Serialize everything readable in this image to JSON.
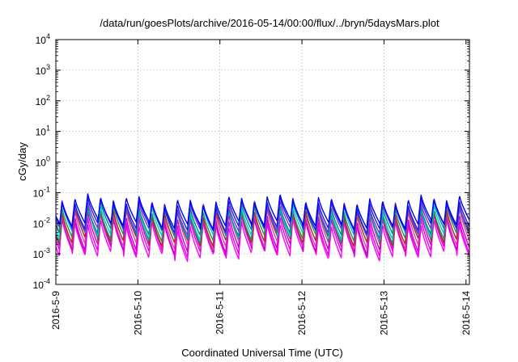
{
  "chart_data": {
    "type": "line",
    "title": "/data/run/goesPlots/archive/2016-05-14/00:00/flux/../bryn/5daysMars.plot",
    "xlabel": "Coordinated Universal Time (UTC)",
    "ylabel": "cGy/day",
    "y_scale": "log",
    "ylim": [
      0.0001,
      10000
    ],
    "xlim": [
      "2016-05-09 00:00",
      "2016-05-14 01:00"
    ],
    "x_ticks": [
      "2016-5-9",
      "2016-5-10",
      "2016-5-11",
      "2016-5-12",
      "2016-5-13",
      "2016-5-14"
    ],
    "y_ticks": [
      {
        "base": "10",
        "exp": "-4",
        "value": 0.0001
      },
      {
        "base": "10",
        "exp": "-3",
        "value": 0.001
      },
      {
        "base": "10",
        "exp": "-2",
        "value": 0.01
      },
      {
        "base": "10",
        "exp": "-1",
        "value": 0.1
      },
      {
        "base": "10",
        "exp": "0",
        "value": 1
      },
      {
        "base": "10",
        "exp": "1",
        "value": 10
      },
      {
        "base": "10",
        "exp": "2",
        "value": 100
      },
      {
        "base": "10",
        "exp": "3",
        "value": 1000
      },
      {
        "base": "10",
        "exp": "4",
        "value": 10000
      }
    ],
    "grid": true,
    "legend": "none",
    "sawtooth": {
      "cycles_per_day": 6.4,
      "peak_hour_of_cycle": 0.8
    },
    "series": [
      {
        "color": "#ff00ff",
        "peak": 0.01,
        "trough": 0.00085
      },
      {
        "color": "#ee00ee",
        "peak": 0.014,
        "trough": 0.0011
      },
      {
        "color": "#cc00cc",
        "peak": 0.018,
        "trough": 0.0014
      },
      {
        "color": "#dd44aa",
        "peak": 0.024,
        "trough": 0.0019
      },
      {
        "color": "#a52a2a",
        "peak": 0.026,
        "trough": 0.0025
      },
      {
        "color": "#2e8b57",
        "peak": 0.03,
        "trough": 0.0032
      },
      {
        "color": "#00cccc",
        "peak": 0.036,
        "trough": 0.004
      },
      {
        "color": "#008b8b",
        "peak": 0.04,
        "trough": 0.0048
      },
      {
        "color": "#8a2be2",
        "peak": 0.045,
        "trough": 0.006
      },
      {
        "color": "#2222dd",
        "peak": 0.05,
        "trough": 0.007
      },
      {
        "color": "#0000ff",
        "peak": 0.06,
        "trough": 0.009
      }
    ]
  }
}
